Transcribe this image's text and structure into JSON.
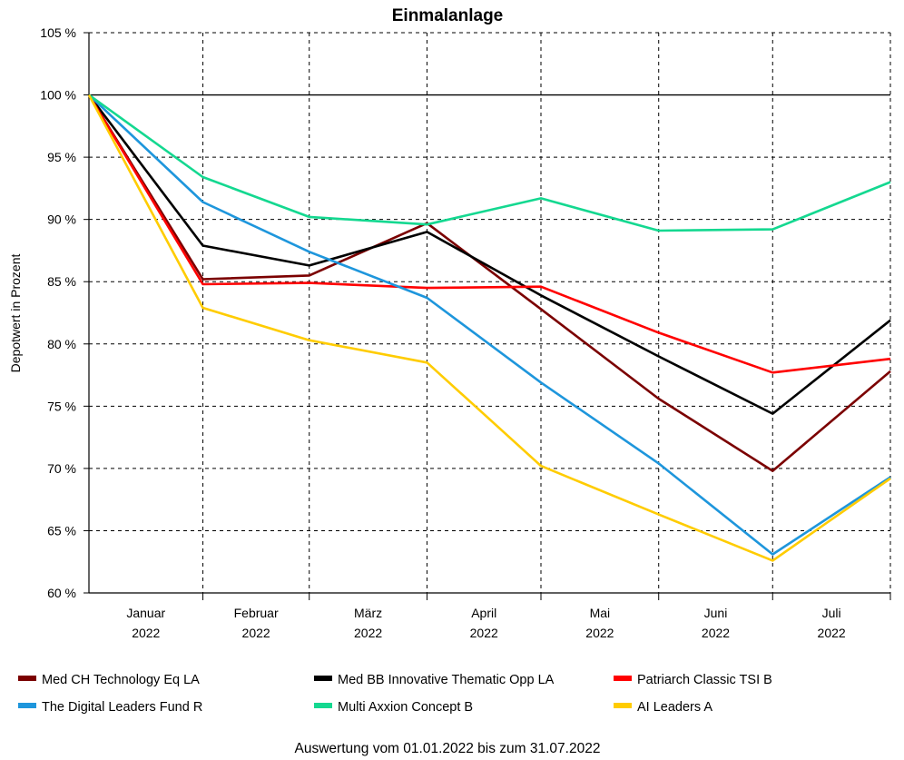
{
  "chart_data": {
    "type": "line",
    "title": "Einmalanlage",
    "xlabel": "",
    "ylabel": "Depotwert in Prozent",
    "ylim": [
      60,
      105
    ],
    "yticks": [
      60,
      65,
      70,
      75,
      80,
      85,
      90,
      95,
      100,
      105
    ],
    "ytick_labels": [
      "60 %",
      "65 %",
      "70 %",
      "75 %",
      "80 %",
      "85 %",
      "90 %",
      "95 %",
      "100 %",
      "105 %"
    ],
    "months": [
      {
        "name": "Januar",
        "year": "2022"
      },
      {
        "name": "Februar",
        "year": "2022"
      },
      {
        "name": "März",
        "year": "2022"
      },
      {
        "name": "April",
        "year": "2022"
      },
      {
        "name": "Mai",
        "year": "2022"
      },
      {
        "name": "Juni",
        "year": "2022"
      },
      {
        "name": "Juli",
        "year": "2022"
      }
    ],
    "x": [
      "2022-01-01",
      "2022-01-31",
      "2022-02-28",
      "2022-03-31",
      "2022-04-30",
      "2022-05-31",
      "2022-06-30",
      "2022-07-31"
    ],
    "xlim": [
      "2022-01-01",
      "2022-07-31"
    ],
    "vertical_gridlines": [
      "2022-01-31",
      "2022-02-28",
      "2022-03-31",
      "2022-04-30",
      "2022-05-31",
      "2022-06-30",
      "2022-07-31"
    ],
    "series": [
      {
        "name": "Med CH Technology Eq LA",
        "color": "#7b0000",
        "values": [
          100,
          85.2,
          85.5,
          89.7,
          82.8,
          75.6,
          69.8,
          77.8
        ]
      },
      {
        "name": "Med BB Innovative Thematic Opp LA",
        "color": "#000000",
        "values": [
          100,
          87.9,
          86.3,
          89.0,
          83.9,
          79.0,
          74.4,
          81.9
        ]
      },
      {
        "name": "Patriarch Classic TSI B",
        "color": "#ff0000",
        "values": [
          100,
          84.8,
          84.9,
          84.5,
          84.6,
          80.9,
          77.7,
          78.8
        ]
      },
      {
        "name": "The Digital Leaders Fund R",
        "color": "#1e96dc",
        "values": [
          100,
          91.4,
          87.4,
          83.7,
          76.9,
          70.4,
          63.1,
          69.3
        ]
      },
      {
        "name": "Multi Axxion Concept B",
        "color": "#14d890",
        "values": [
          100,
          93.4,
          90.2,
          89.6,
          91.7,
          89.1,
          89.2,
          93.0
        ]
      },
      {
        "name": "AI Leaders A",
        "color": "#ffcc00",
        "values": [
          100,
          82.9,
          80.3,
          78.5,
          70.2,
          66.3,
          62.6,
          69.2
        ]
      }
    ],
    "reference_line": 100,
    "grid": true,
    "legend_position": "bottom",
    "footer": "Auswertung vom 01.01.2022 bis zum 31.07.2022"
  }
}
